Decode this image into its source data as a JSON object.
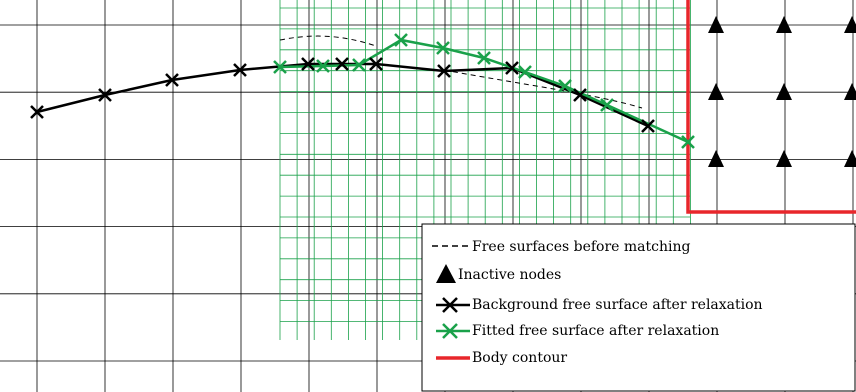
{
  "legend": {
    "items": [
      "Free surfaces before matching",
      "Inactive nodes",
      "Background free surface after relaxation",
      "Fitted free surface after relaxation",
      "Body contour"
    ]
  }
}
